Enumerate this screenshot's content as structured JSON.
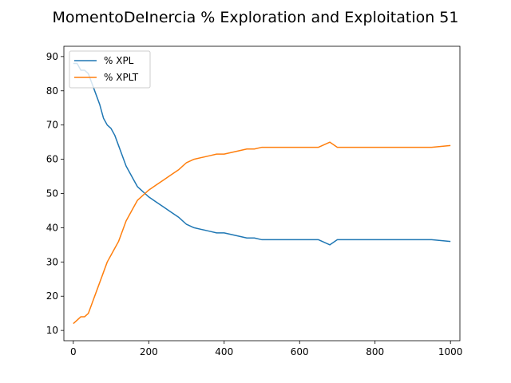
{
  "chart_data": {
    "type": "line",
    "title": "MomentoDeInercia % Exploration and Exploitation 51",
    "xlabel": "",
    "ylabel": "",
    "xlim": [
      -25,
      1025
    ],
    "ylim": [
      7,
      93
    ],
    "xticks": [
      0,
      200,
      400,
      600,
      800,
      1000
    ],
    "yticks": [
      10,
      20,
      30,
      40,
      50,
      60,
      70,
      80,
      90
    ],
    "grid": false,
    "legend_position": "upper left",
    "series": [
      {
        "name": "% XPL",
        "color": "#1f77b4",
        "x": [
          0,
          10,
          20,
          30,
          40,
          50,
          60,
          70,
          80,
          90,
          100,
          110,
          120,
          130,
          140,
          150,
          160,
          170,
          180,
          190,
          200,
          220,
          240,
          260,
          280,
          300,
          320,
          340,
          360,
          380,
          400,
          420,
          440,
          460,
          480,
          500,
          550,
          600,
          650,
          680,
          700,
          750,
          800,
          850,
          900,
          950,
          1000
        ],
        "values": [
          88,
          88,
          86,
          86,
          85,
          82,
          79,
          76,
          72,
          70,
          69,
          67,
          64,
          61,
          58,
          56,
          54,
          52,
          51,
          50,
          49,
          47.5,
          46,
          44.5,
          43,
          41,
          40,
          39.5,
          39,
          38.5,
          38.5,
          38,
          37.5,
          37,
          37,
          36.5,
          36.5,
          36.5,
          36.5,
          35,
          36.5,
          36.5,
          36.5,
          36.5,
          36.5,
          36.5,
          36
        ]
      },
      {
        "name": "% XPLT",
        "color": "#ff7f0e",
        "x": [
          0,
          10,
          20,
          30,
          40,
          50,
          60,
          70,
          80,
          90,
          100,
          110,
          120,
          130,
          140,
          150,
          160,
          170,
          180,
          190,
          200,
          220,
          240,
          260,
          280,
          300,
          320,
          340,
          360,
          380,
          400,
          420,
          440,
          460,
          480,
          500,
          550,
          600,
          650,
          680,
          700,
          750,
          800,
          850,
          900,
          950,
          1000
        ],
        "values": [
          12,
          13,
          14,
          14,
          15,
          18,
          21,
          24,
          27,
          30,
          32,
          34,
          36,
          39,
          42,
          44,
          46,
          48,
          49,
          50,
          51,
          52.5,
          54,
          55.5,
          57,
          59,
          60,
          60.5,
          61,
          61.5,
          61.5,
          62,
          62.5,
          63,
          63,
          63.5,
          63.5,
          63.5,
          63.5,
          65,
          63.5,
          63.5,
          63.5,
          63.5,
          63.5,
          63.5,
          64
        ]
      }
    ]
  }
}
